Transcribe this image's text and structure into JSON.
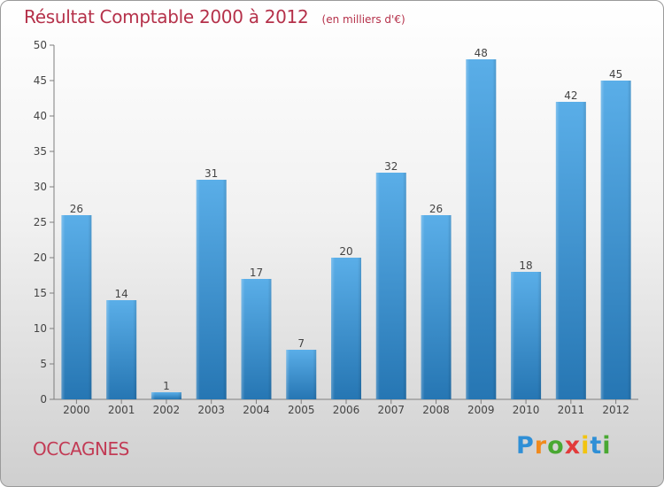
{
  "header": {
    "title": "Résultat Comptable 2000 à 2012",
    "subtitle": "(en milliers d'€)"
  },
  "commune_name": "OCCAGNES",
  "logo": {
    "letters": [
      "P",
      "r",
      "o",
      "x",
      "i",
      "t",
      "i"
    ],
    "colors": [
      "#2f8fd6",
      "#f08a1c",
      "#49a832",
      "#e23a3a",
      "#f2c40f",
      "#2f8fd6",
      "#49a832"
    ]
  },
  "chart_data": {
    "type": "bar",
    "title": "Résultat Comptable 2000 à 2012",
    "subtitle": "(en milliers d'€)",
    "categories": [
      "2000",
      "2001",
      "2002",
      "2003",
      "2004",
      "2005",
      "2006",
      "2007",
      "2008",
      "2009",
      "2010",
      "2011",
      "2012"
    ],
    "values": [
      26,
      14,
      1,
      31,
      17,
      7,
      20,
      32,
      26,
      48,
      18,
      42,
      45
    ],
    "ylim": [
      0,
      50
    ],
    "yticks": [
      0,
      5,
      10,
      15,
      20,
      25,
      30,
      35,
      40,
      45,
      50
    ],
    "xlabel": "",
    "ylabel": "",
    "grid": false,
    "bar_color_top": "#5aaee8",
    "bar_color_bottom": "#2676b3"
  }
}
